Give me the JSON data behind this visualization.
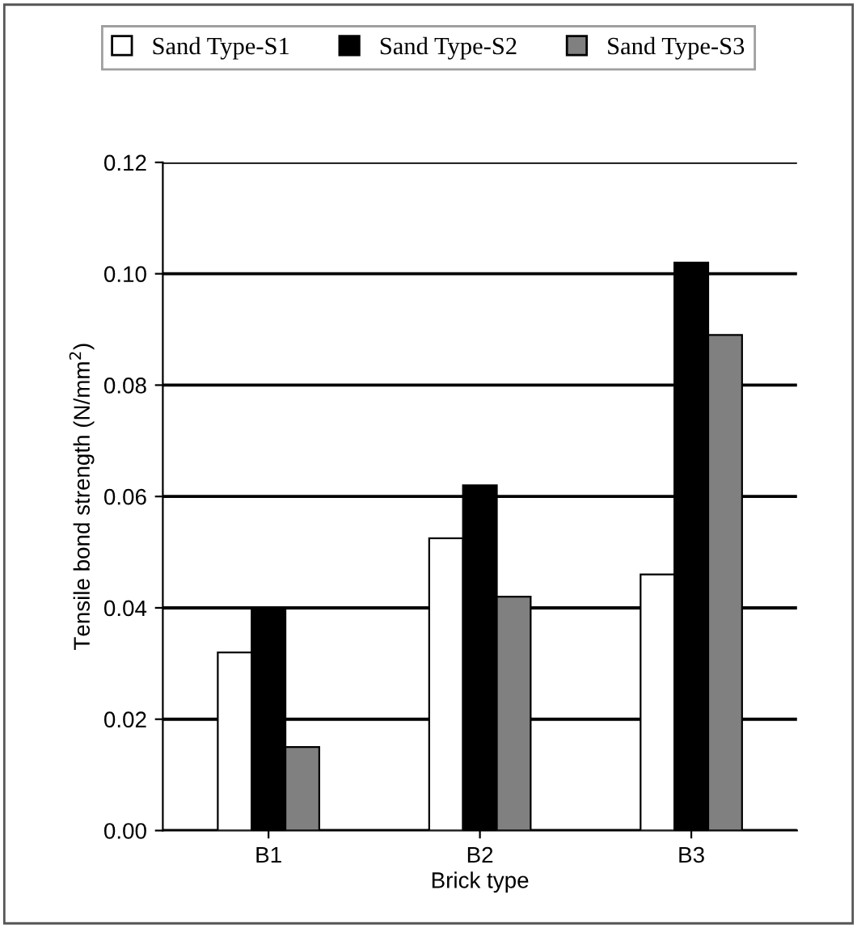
{
  "chart_data": {
    "type": "bar",
    "xlabel": "Brick type",
    "ylabel": "Tensile bond strength (N/mm$^{2}$)",
    "categories": [
      "B1",
      "B2",
      "B3"
    ],
    "series": [
      {
        "name": "Sand Type-S1",
        "color": "#ffffff",
        "values": [
          0.032,
          0.0525,
          0.046
        ]
      },
      {
        "name": "Sand Type-S2",
        "color": "#000000",
        "values": [
          0.04,
          0.062,
          0.102
        ]
      },
      {
        "name": "Sand Type-S3",
        "color": "#808080",
        "values": [
          0.015,
          0.042,
          0.089
        ]
      }
    ],
    "ylim": [
      0,
      0.12
    ],
    "yticks": [
      {
        "value": 0,
        "label": "0.00"
      },
      {
        "value": 0.02,
        "label": "0.02"
      },
      {
        "value": 0.04,
        "label": "0.04"
      },
      {
        "value": 0.06,
        "label": "0.06"
      },
      {
        "value": 0.08,
        "label": "0.08"
      },
      {
        "value": 0.1,
        "label": "0.10"
      },
      {
        "value": 0.12,
        "label": "0.12"
      }
    ],
    "grid": "y",
    "legend": "top"
  }
}
